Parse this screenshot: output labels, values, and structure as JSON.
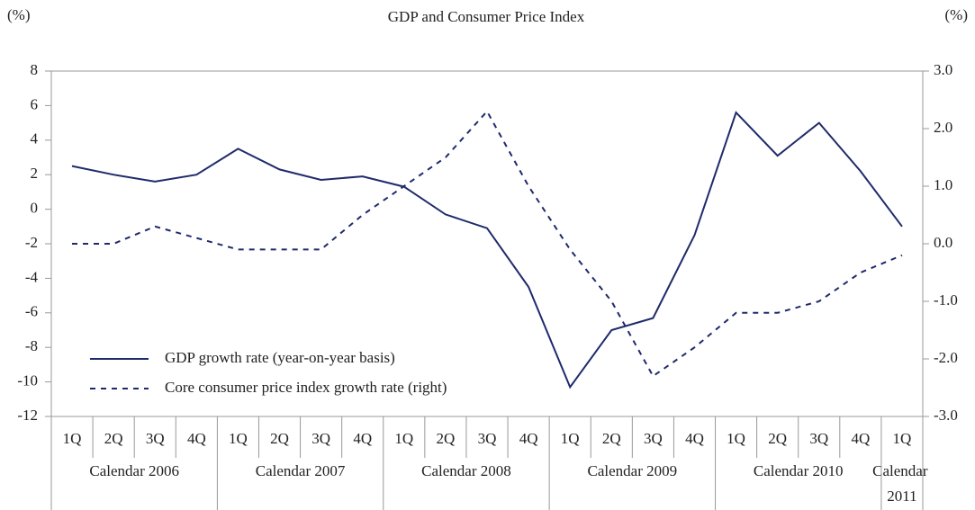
{
  "chart_data": {
    "type": "line",
    "title": "GDP and Consumer Price Index",
    "y_label": "(%)",
    "y2_label": "(%)",
    "groups": [
      {
        "label": "Calendar 2006",
        "categories": [
          "1Q",
          "2Q",
          "3Q",
          "4Q"
        ]
      },
      {
        "label": "Calendar 2007",
        "categories": [
          "1Q",
          "2Q",
          "3Q",
          "4Q"
        ]
      },
      {
        "label": "Calendar 2008",
        "categories": [
          "1Q",
          "2Q",
          "3Q",
          "4Q"
        ]
      },
      {
        "label": "Calendar 2009",
        "categories": [
          "1Q",
          "2Q",
          "3Q",
          "4Q"
        ]
      },
      {
        "label": "Calendar 2010",
        "categories": [
          "1Q",
          "2Q",
          "3Q",
          "4Q"
        ]
      },
      {
        "label": "Calendar 2011",
        "categories": [
          "1Q"
        ]
      }
    ],
    "series": [
      {
        "name": "GDP growth rate (year-on-year basis)",
        "color": "#1f2a6b",
        "dash": "solid",
        "values": [
          2.5,
          2.0,
          1.6,
          2.0,
          3.5,
          2.3,
          1.7,
          1.9,
          1.3,
          -0.3,
          -1.1,
          -4.5,
          -10.3,
          -7.0,
          -6.3,
          -1.5,
          5.6,
          3.1,
          5.0,
          2.2,
          -1.0
        ]
      },
      {
        "name": "Core consumer price index growth rate (right)",
        "color": "#1f2a6b",
        "dash": "dashed",
        "axis": "y2",
        "values": [
          0.0,
          0.0,
          0.3,
          0.1,
          -0.1,
          -0.1,
          -0.1,
          0.5,
          1.0,
          1.5,
          2.3,
          1.0,
          -0.1,
          -1.0,
          -2.3,
          -1.8,
          -1.2,
          -1.2,
          -1.0,
          -0.5,
          -0.2
        ]
      }
    ],
    "ylim": [
      -12,
      8
    ],
    "yticks": [
      -12,
      -10,
      -8,
      -6,
      -4,
      -2,
      0,
      2,
      4,
      6,
      8
    ],
    "y2lim": [
      -3,
      3
    ],
    "y2ticks": [
      {
        "value": -3,
        "label": "-3.0"
      },
      {
        "value": -2,
        "label": "-2.0"
      },
      {
        "value": -1,
        "label": "-1.0"
      },
      {
        "value": 0,
        "label": "0.0"
      },
      {
        "value": 1,
        "label": "1.0"
      },
      {
        "value": 2,
        "label": "2.0"
      },
      {
        "value": 3,
        "label": "3.0"
      }
    ],
    "legend": "lower left"
  }
}
